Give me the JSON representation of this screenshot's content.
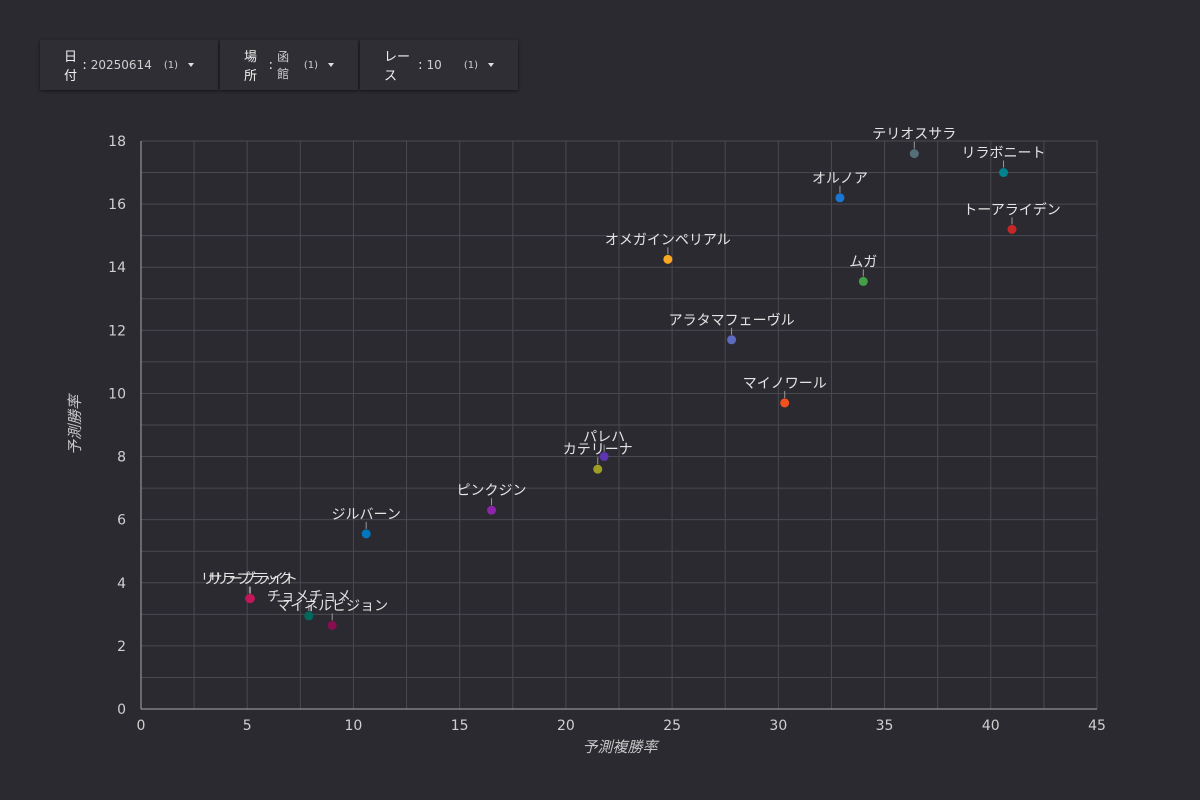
{
  "filters": [
    {
      "label": "日付",
      "value": "20250614",
      "count": "(1)"
    },
    {
      "label": "場所",
      "value": "函館",
      "count": "(1)"
    },
    {
      "label": "レース",
      "value": "10",
      "count": "(1)"
    }
  ],
  "chart_data": {
    "type": "scatter",
    "xlabel": "予測複勝率",
    "ylabel": "予測勝率",
    "xlim": [
      0,
      45
    ],
    "ylim": [
      0,
      18
    ],
    "xticks": [
      0,
      5,
      10,
      15,
      20,
      25,
      30,
      35,
      40,
      45
    ],
    "yticks": [
      0,
      2,
      4,
      6,
      8,
      10,
      12,
      14,
      16,
      18
    ],
    "grid": true,
    "points": [
      {
        "label": "リラボニート",
        "x": 40.6,
        "y": 17.0,
        "color": "#00838f"
      },
      {
        "label": "テリオスサラ",
        "x": 36.4,
        "y": 17.6,
        "color": "#546e7a"
      },
      {
        "label": "オルノア",
        "x": 32.9,
        "y": 16.2,
        "color": "#1976d2"
      },
      {
        "label": "トーアライデン",
        "x": 41.0,
        "y": 15.2,
        "color": "#c62828"
      },
      {
        "label": "オメガインペリアル",
        "x": 24.8,
        "y": 14.25,
        "color": "#f9a825"
      },
      {
        "label": "ムガ",
        "x": 34.0,
        "y": 13.55,
        "color": "#43a047"
      },
      {
        "label": "アラタマフェーヴル",
        "x": 27.8,
        "y": 11.7,
        "color": "#5c6bc0"
      },
      {
        "label": "マイノワール",
        "x": 30.3,
        "y": 9.7,
        "color": "#f4511e"
      },
      {
        "label": "パレハ",
        "x": 21.8,
        "y": 8.0,
        "color": "#5e35b1"
      },
      {
        "label": "カテリーナ",
        "x": 21.5,
        "y": 7.6,
        "color": "#9e9d24"
      },
      {
        "label": "ピンクジン",
        "x": 16.5,
        "y": 6.3,
        "color": "#8e24aa"
      },
      {
        "label": "ジルバーン",
        "x": 10.6,
        "y": 5.55,
        "color": "#0277bd"
      },
      {
        "label": "リリーブライト",
        "x": 5.1,
        "y": 3.5,
        "color": "#ad1457"
      },
      {
        "label": "サラブラック",
        "x": 5.15,
        "y": 3.5,
        "color": "#c2185b"
      },
      {
        "label": "チョメチョメ",
        "x": 7.9,
        "y": 2.95,
        "color": "#00695c"
      },
      {
        "label": "マイネルビジョン",
        "x": 9.0,
        "y": 2.65,
        "color": "#880e4f"
      }
    ]
  }
}
